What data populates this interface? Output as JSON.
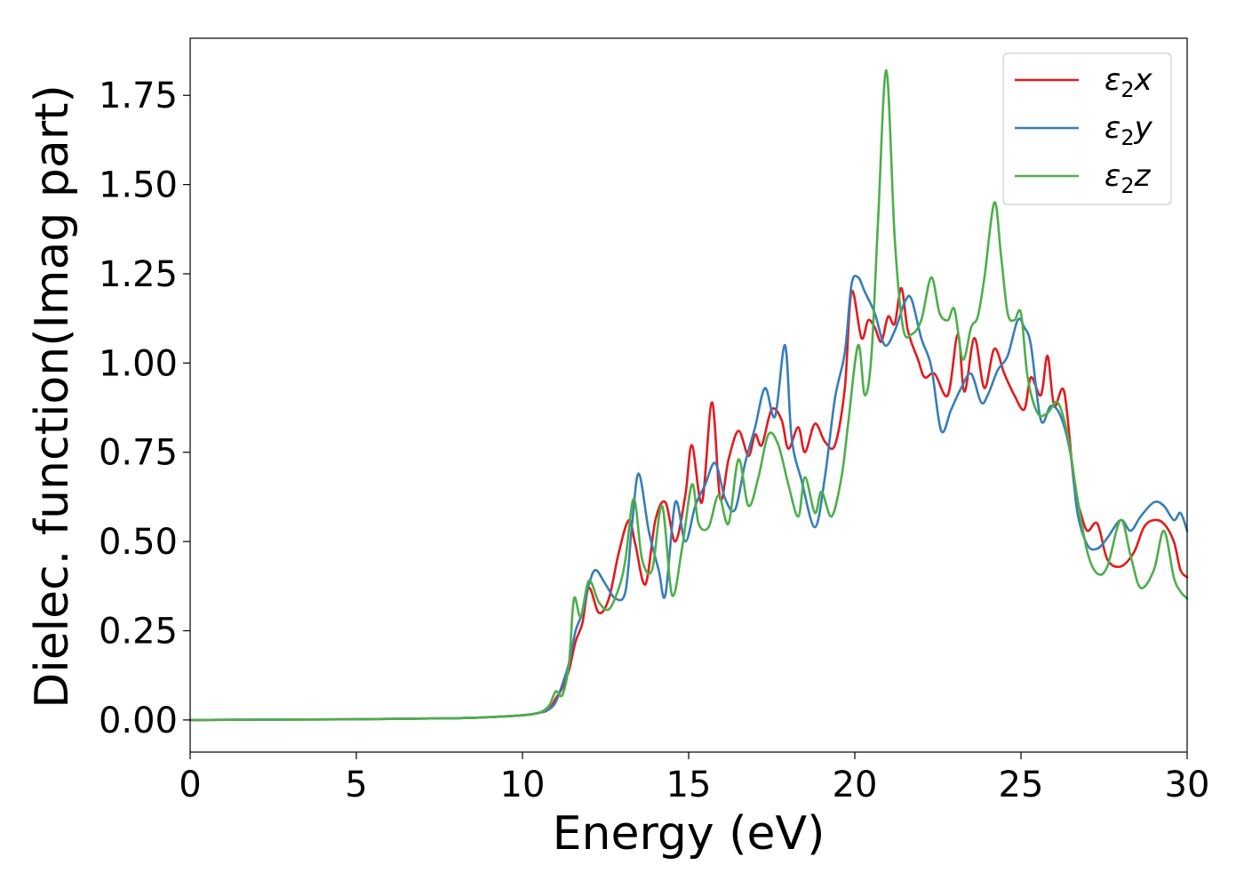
{
  "chart_data": {
    "type": "line",
    "title": "",
    "xlabel": "Energy (eV)",
    "ylabel": "Dielec. function(Imag part)",
    "xlim": [
      0,
      30
    ],
    "ylim": [
      -0.09,
      1.91
    ],
    "xticks": [
      0,
      5,
      10,
      15,
      20,
      25,
      30
    ],
    "xtick_labels": [
      "0",
      "5",
      "10",
      "15",
      "20",
      "25",
      "30"
    ],
    "yticks": [
      0.0,
      0.25,
      0.5,
      0.75,
      1.0,
      1.25,
      1.5,
      1.75
    ],
    "ytick_labels": [
      "0.00",
      "0.25",
      "0.50",
      "0.75",
      "1.00",
      "1.25",
      "1.50",
      "1.75"
    ],
    "grid": false,
    "legend_position": "top-right",
    "series": [
      {
        "name": "ε₂x",
        "legend": {
          "base": "ε",
          "sub": "2",
          "suffix": "x"
        },
        "color": "#e41a1c",
        "x": [
          0,
          5,
          8,
          9,
          10,
          10.5,
          10.8,
          11.0,
          11.2,
          11.4,
          11.6,
          11.8,
          12.0,
          12.3,
          12.6,
          12.9,
          13.2,
          13.4,
          13.7,
          14.0,
          14.3,
          14.6,
          14.9,
          15.1,
          15.4,
          15.7,
          15.95,
          16.2,
          16.5,
          16.8,
          17.0,
          17.2,
          17.5,
          17.8,
          18.0,
          18.3,
          18.5,
          18.8,
          19.1,
          19.4,
          19.7,
          19.9,
          20.2,
          20.4,
          20.6,
          20.8,
          21.0,
          21.2,
          21.4,
          21.6,
          21.9,
          22.1,
          22.4,
          22.8,
          23.1,
          23.3,
          23.6,
          23.9,
          24.2,
          24.5,
          24.8,
          25.1,
          25.3,
          25.6,
          25.8,
          26.0,
          26.3,
          26.6,
          26.8,
          27.0,
          27.3,
          27.6,
          28.0,
          28.4,
          28.7,
          29.0,
          29.3,
          29.6,
          29.8,
          30.0
        ],
        "y": [
          0.0,
          0.002,
          0.005,
          0.008,
          0.013,
          0.02,
          0.03,
          0.06,
          0.09,
          0.14,
          0.22,
          0.27,
          0.37,
          0.3,
          0.34,
          0.47,
          0.56,
          0.49,
          0.38,
          0.56,
          0.61,
          0.5,
          0.63,
          0.77,
          0.61,
          0.89,
          0.62,
          0.73,
          0.81,
          0.74,
          0.8,
          0.77,
          0.87,
          0.84,
          0.76,
          0.82,
          0.75,
          0.83,
          0.78,
          0.77,
          0.93,
          1.2,
          1.07,
          1.12,
          1.1,
          1.06,
          1.13,
          1.11,
          1.21,
          1.09,
          1.01,
          0.96,
          0.97,
          0.91,
          1.08,
          0.92,
          1.07,
          0.93,
          1.04,
          0.97,
          0.91,
          0.87,
          0.96,
          0.91,
          1.02,
          0.88,
          0.92,
          0.66,
          0.58,
          0.53,
          0.55,
          0.45,
          0.43,
          0.47,
          0.54,
          0.56,
          0.55,
          0.5,
          0.42,
          0.4
        ]
      },
      {
        "name": "ε₂y",
        "legend": {
          "base": "ε",
          "sub": "2",
          "suffix": "y"
        },
        "color": "#377eb8",
        "x": [
          0,
          5,
          8,
          9,
          10,
          10.5,
          10.8,
          11.0,
          11.2,
          11.4,
          11.6,
          11.8,
          12.0,
          12.2,
          12.5,
          12.8,
          13.1,
          13.3,
          13.5,
          13.8,
          14.1,
          14.3,
          14.6,
          14.9,
          15.2,
          15.5,
          15.8,
          16.1,
          16.4,
          16.7,
          17.0,
          17.3,
          17.6,
          17.9,
          18.1,
          18.4,
          18.8,
          19.1,
          19.4,
          19.7,
          19.9,
          20.1,
          20.3,
          20.6,
          20.9,
          21.2,
          21.5,
          21.7,
          22.0,
          22.3,
          22.6,
          22.9,
          23.2,
          23.5,
          23.8,
          24.0,
          24.3,
          24.6,
          24.9,
          25.1,
          25.3,
          25.6,
          25.9,
          26.2,
          26.5,
          26.7,
          27.0,
          27.3,
          27.6,
          28.0,
          28.3,
          28.6,
          29.0,
          29.3,
          29.6,
          29.8,
          30.0
        ],
        "y": [
          0.0,
          0.002,
          0.005,
          0.008,
          0.013,
          0.02,
          0.03,
          0.05,
          0.1,
          0.16,
          0.25,
          0.3,
          0.38,
          0.42,
          0.38,
          0.34,
          0.36,
          0.55,
          0.69,
          0.53,
          0.42,
          0.35,
          0.61,
          0.5,
          0.6,
          0.66,
          0.72,
          0.62,
          0.59,
          0.72,
          0.82,
          0.93,
          0.85,
          1.05,
          0.79,
          0.67,
          0.54,
          0.68,
          0.9,
          1.03,
          1.22,
          1.24,
          1.2,
          1.14,
          1.05,
          1.09,
          1.17,
          1.18,
          1.07,
          0.99,
          0.81,
          0.87,
          0.93,
          0.97,
          0.89,
          0.91,
          0.98,
          1.02,
          1.12,
          1.1,
          1.05,
          0.84,
          0.88,
          0.85,
          0.74,
          0.58,
          0.49,
          0.48,
          0.51,
          0.56,
          0.53,
          0.57,
          0.61,
          0.6,
          0.56,
          0.58,
          0.53
        ]
      },
      {
        "name": "ε₂z",
        "legend": {
          "base": "ε",
          "sub": "2",
          "suffix": "z"
        },
        "color": "#4daf4a",
        "x": [
          0,
          5,
          8,
          9,
          10,
          10.5,
          10.8,
          11.0,
          11.2,
          11.4,
          11.55,
          11.75,
          12.0,
          12.3,
          12.6,
          12.9,
          13.1,
          13.35,
          13.6,
          13.9,
          14.2,
          14.5,
          14.8,
          15.1,
          15.3,
          15.6,
          15.9,
          16.2,
          16.5,
          16.8,
          17.1,
          17.4,
          17.7,
          18.0,
          18.3,
          18.5,
          18.8,
          19.0,
          19.3,
          19.6,
          19.8,
          20.1,
          20.3,
          20.5,
          20.7,
          20.95,
          21.2,
          21.45,
          21.7,
          22.0,
          22.3,
          22.55,
          22.8,
          23.0,
          23.25,
          23.5,
          23.7,
          23.9,
          24.2,
          24.4,
          24.6,
          24.8,
          25.0,
          25.2,
          25.5,
          25.8,
          26.1,
          26.4,
          26.7,
          27.0,
          27.3,
          27.6,
          28.0,
          28.3,
          28.6,
          29.0,
          29.3,
          29.6,
          29.8,
          30.0
        ],
        "y": [
          0.0,
          0.002,
          0.005,
          0.008,
          0.013,
          0.02,
          0.04,
          0.08,
          0.07,
          0.16,
          0.34,
          0.29,
          0.39,
          0.33,
          0.31,
          0.37,
          0.45,
          0.62,
          0.45,
          0.42,
          0.6,
          0.35,
          0.48,
          0.66,
          0.55,
          0.54,
          0.63,
          0.55,
          0.73,
          0.6,
          0.68,
          0.8,
          0.77,
          0.66,
          0.57,
          0.68,
          0.58,
          0.64,
          0.57,
          0.68,
          0.83,
          1.05,
          0.91,
          1.02,
          1.4,
          1.82,
          1.35,
          1.1,
          1.08,
          1.12,
          1.24,
          1.14,
          1.12,
          1.15,
          1.01,
          1.1,
          1.13,
          1.24,
          1.45,
          1.3,
          1.14,
          1.12,
          1.14,
          0.96,
          0.86,
          0.86,
          0.89,
          0.8,
          0.62,
          0.47,
          0.41,
          0.43,
          0.56,
          0.46,
          0.37,
          0.42,
          0.53,
          0.4,
          0.36,
          0.34
        ]
      }
    ]
  }
}
